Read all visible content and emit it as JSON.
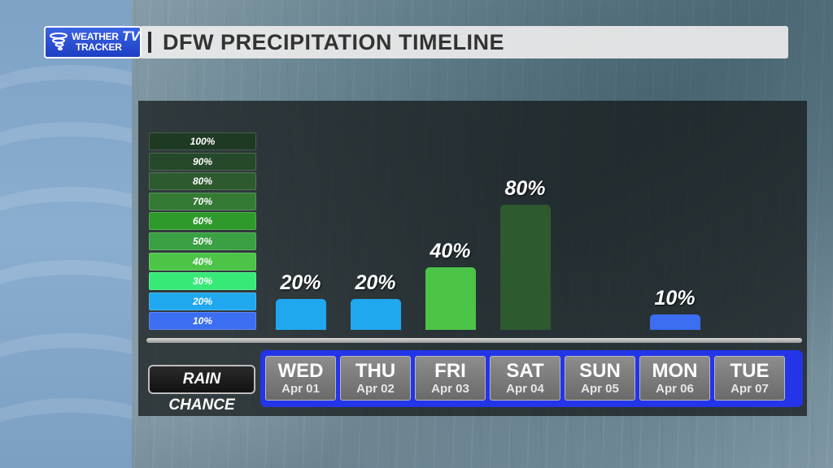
{
  "header": {
    "title": "DFW PRECIPITATION TIMELINE",
    "logo": {
      "line1": "WEATHER",
      "line2": "TRACKER",
      "tv": "TV",
      "icon": "tornado-icon"
    }
  },
  "legend": {
    "items": [
      {
        "label": "100%",
        "color": "#1f3a22"
      },
      {
        "label": "90%",
        "color": "#27492b"
      },
      {
        "label": "80%",
        "color": "#2e5a30"
      },
      {
        "label": "70%",
        "color": "#347a35"
      },
      {
        "label": "60%",
        "color": "#2f9a2c"
      },
      {
        "label": "50%",
        "color": "#3aa043"
      },
      {
        "label": "40%",
        "color": "#4cc448"
      },
      {
        "label": "30%",
        "color": "#37ea77"
      },
      {
        "label": "20%",
        "color": "#20a8ef"
      },
      {
        "label": "10%",
        "color": "#3b6ef0"
      }
    ]
  },
  "chart_data": {
    "type": "bar",
    "title": "DFW PRECIPITATION TIMELINE",
    "row_label": "RAIN CHANCE",
    "categories": [
      "WED",
      "THU",
      "FRI",
      "SAT",
      "SUN",
      "MON",
      "TUE"
    ],
    "dates": [
      "Apr 01",
      "Apr 02",
      "Apr 03",
      "Apr 04",
      "Apr 05",
      "Apr 06",
      "Apr 07"
    ],
    "values": [
      20,
      20,
      40,
      80,
      0,
      10,
      0
    ],
    "value_labels": [
      "20%",
      "20%",
      "40%",
      "80%",
      "",
      "10%",
      ""
    ],
    "bar_colors": [
      "#20a8ef",
      "#20a8ef",
      "#4cc448",
      "#2e5a30",
      "",
      "#3b6ef0",
      ""
    ],
    "ylim": [
      0,
      100
    ],
    "frame_color": "#2434e8"
  }
}
